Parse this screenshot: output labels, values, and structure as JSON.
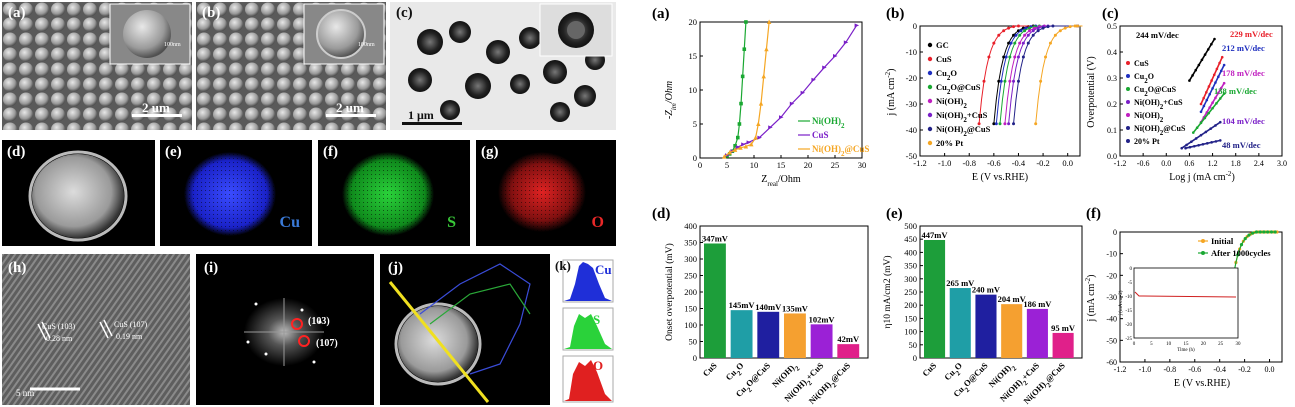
{
  "left": {
    "a": {
      "label": "(a)",
      "scale": "2 um",
      "inset_scale": "100nm"
    },
    "b": {
      "label": "(b)",
      "scale": "2 um",
      "inset_scale": "100nm"
    },
    "c": {
      "label": "(c)",
      "scale": "1 μm"
    },
    "d": {
      "label": "(d)"
    },
    "e": {
      "label": "(e)",
      "element": "Cu"
    },
    "f": {
      "label": "(f)",
      "element": "S"
    },
    "g": {
      "label": "(g)",
      "element": "O"
    },
    "h": {
      "label": "(h)",
      "lattice1": "CuS (103)",
      "spacing1": "0.28 nm",
      "lattice2": "CuS (107)",
      "spacing2": "0.19 nm",
      "scale": "5 nm"
    },
    "i": {
      "label": "(i)",
      "spot1": "(103)",
      "spot2": "(107)"
    },
    "j": {
      "label": "(j)"
    },
    "k": {
      "label": "(k)",
      "el1": "Cu",
      "el2": "S",
      "el3": "O"
    }
  },
  "colors": {
    "GC": "#000000",
    "CuS": "#e8202a",
    "Cu2O": "#1f2fbf",
    "Cu2O@CuS": "#1aa832",
    "NiOH2": "#c01fc0",
    "NiOH2+CuS": "#7a1fc8",
    "NiOH2@CuS": "#222288",
    "Pt": "#f5a623",
    "bar1": "#1d9e3a",
    "bar2": "#1f9ea6",
    "bar3": "#1f1fa0",
    "bar4": "#f5a030",
    "bar5": "#9b21d6",
    "bar6": "#e0208a"
  },
  "chart_data": [
    {
      "panel": "(a)",
      "type": "line",
      "xlabel": "Z",
      "xlabel_sub": "real",
      "xlabel_unit": "/Ohm",
      "ylabel": "-Z",
      "ylabel_sub": "im",
      "ylabel_unit": "/Ohm",
      "xlim": [
        0,
        30
      ],
      "ylim": [
        0,
        20
      ],
      "xticks": [
        "0",
        "5",
        "10",
        "15",
        "20",
        "25",
        "30"
      ],
      "yticks": [
        "0",
        "5",
        "10",
        "15",
        "20"
      ],
      "series": [
        {
          "name": "Ni(OH)2",
          "color": "#1aa832",
          "points": [
            [
              5,
              0.3
            ],
            [
              5.5,
              0.6
            ],
            [
              6,
              1
            ],
            [
              6.5,
              1.8
            ],
            [
              7,
              3
            ],
            [
              7.3,
              5
            ],
            [
              7.6,
              8
            ],
            [
              7.9,
              12
            ],
            [
              8.2,
              16
            ],
            [
              8.5,
              20
            ]
          ]
        },
        {
          "name": "CuS",
          "color": "#7a1fc8",
          "points": [
            [
              5,
              0.4
            ],
            [
              6,
              1
            ],
            [
              7,
              1.6
            ],
            [
              8,
              2
            ],
            [
              9,
              2.3
            ],
            [
              11,
              3
            ],
            [
              13,
              4.5
            ],
            [
              15,
              6
            ],
            [
              17,
              8
            ],
            [
              19,
              9.6
            ],
            [
              21,
              11.5
            ],
            [
              23,
              13.3
            ],
            [
              25,
              15
            ],
            [
              27,
              17
            ],
            [
              29,
              19.5
            ]
          ]
        },
        {
          "name": "Ni(OH)2@CuS",
          "color": "#f5a623",
          "points": [
            [
              4.5,
              0.2
            ],
            [
              5.5,
              0.8
            ],
            [
              6.5,
              1.2
            ],
            [
              7.5,
              1.5
            ],
            [
              8.5,
              1.7
            ],
            [
              9.5,
              2
            ],
            [
              10.3,
              3
            ],
            [
              10.8,
              5
            ],
            [
              11.3,
              8
            ],
            [
              11.8,
              12
            ],
            [
              12.3,
              16
            ],
            [
              12.8,
              20
            ]
          ]
        }
      ],
      "legend_labels": {
        "s1": "Ni(OH)",
        "s1sub": "2",
        "s2": "CuS",
        "s3": "Ni(OH)",
        "s3sub": "2",
        "s3tail": "@CuS"
      }
    },
    {
      "panel": "(b)",
      "type": "line",
      "xlabel": "E (V vs.RHE)",
      "ylabel": "j (mA cm",
      "ylabel_sup": "-2",
      "ylabel_tail": ")",
      "xlim": [
        -1.2,
        0.1
      ],
      "ylim": [
        -50,
        0
      ],
      "xticks": [
        "-1.2",
        "-1.0",
        "-0.8",
        "-0.6",
        "-0.4",
        "-0.2",
        "0.0"
      ],
      "yticks": [
        "0",
        "-10",
        "-20",
        "-30",
        "-40",
        "-50"
      ],
      "series": [
        {
          "name": "GC",
          "onset": -0.42
        },
        {
          "name": "CuS",
          "onset": -0.54
        },
        {
          "name": "Cu2O",
          "onset": -0.4
        },
        {
          "name": "Cu2O@CuS",
          "onset": -0.37
        },
        {
          "name": "Ni(OH)2",
          "onset": -0.33
        },
        {
          "name": "Ni(OH)2+CuS",
          "onset": -0.3
        },
        {
          "name": "Ni(OH)2@CuS",
          "onset": -0.26
        },
        {
          "name": "20% Pt",
          "onset": -0.08
        }
      ],
      "legend": [
        "GC",
        "CuS",
        "Cu2O",
        "Cu2O@CuS",
        "Ni(OH)2",
        "Ni(OH)2+CuS",
        "Ni(OH)2@CuS",
        "20% Pt"
      ]
    },
    {
      "panel": "(c)",
      "type": "scatter",
      "xlabel": "Log j (mA cm",
      "xlabel_sup": "-2",
      "xlabel_tail": ")",
      "ylabel": "Overpotential (V)",
      "xlim": [
        -1.2,
        3.0
      ],
      "ylim": [
        0,
        0.5
      ],
      "xticks": [
        "-1.2",
        "-0.6",
        "0.0",
        "0.6",
        "1.2",
        "1.8",
        "2.4",
        "3.0"
      ],
      "yticks": [
        "0.0",
        "0.1",
        "0.2",
        "0.3",
        "0.4",
        "0.5"
      ],
      "slopes": [
        "244 mV/dec",
        "229 mV/dec",
        "212 mV/dec",
        "178 mV/dec",
        "138 mV/dec",
        "104 mV/dec",
        "48 mV/dec"
      ],
      "legend": [
        "CuS",
        "Cu2O",
        "Cu2O@CuS",
        "Ni(OH)2+CuS",
        "Ni(OH)2",
        "Ni(OH)2@CuS",
        "20% Pt"
      ]
    },
    {
      "panel": "(d)",
      "type": "bar",
      "ylabel": "Onset overpotential (mV)",
      "ylim": [
        0,
        400
      ],
      "yticks": [
        "0",
        "50",
        "100",
        "150",
        "200",
        "250",
        "300",
        "350",
        "400"
      ],
      "categories": [
        "CuS",
        "Cu2O",
        "Cu2O@CuS",
        "Ni(OH)2",
        "Ni(OH)2+CuS",
        "Ni(OH)2@CuS"
      ],
      "values": [
        347,
        145,
        140,
        135,
        102,
        42
      ],
      "value_labels": [
        "347mV",
        "145mV",
        "140mV",
        "135mV",
        "102mV",
        "42mV"
      ]
    },
    {
      "panel": "(e)",
      "type": "bar",
      "ylabel": "η10 mA/cm2 (mV)",
      "ylim": [
        0,
        500
      ],
      "yticks": [
        "0",
        "50",
        "100",
        "150",
        "200",
        "250",
        "300",
        "350",
        "400",
        "450",
        "500"
      ],
      "categories": [
        "CuS",
        "Cu2O",
        "Cu2O@CuS",
        "Ni(OH)2",
        "Ni(OH)2+CuS",
        "Ni(OH)2@CuS"
      ],
      "values": [
        447,
        265,
        240,
        204,
        186,
        95
      ],
      "value_labels": [
        "447mV",
        "265 mV",
        "240 mV",
        "204 mV",
        "186 mV",
        "95 mV"
      ]
    },
    {
      "panel": "(f)",
      "type": "line",
      "xlabel": "E (V vs.RHE)",
      "ylabel": "j (mA cm",
      "ylabel_sup": "-2",
      "ylabel_tail": ")",
      "xlim": [
        -1.2,
        0.1
      ],
      "ylim": [
        -60,
        0
      ],
      "xticks": [
        "-1.2",
        "-1.0",
        "-0.8",
        "-0.6",
        "-0.4",
        "-0.2",
        "0.0"
      ],
      "yticks": [
        "0",
        "-10",
        "-20",
        "-30",
        "-40",
        "-50",
        "-60"
      ],
      "legend": [
        "Initial",
        "After 1000cycles"
      ],
      "inset": {
        "xlabel": "Time (h)",
        "ylabel": "j (mA cm-2)",
        "xticks": [
          "0",
          "5",
          "10",
          "15",
          "20",
          "25",
          "30"
        ],
        "yticks": [
          "0",
          "-5",
          "-10",
          "-15",
          "-20",
          "-25"
        ],
        "level": -10
      }
    }
  ]
}
